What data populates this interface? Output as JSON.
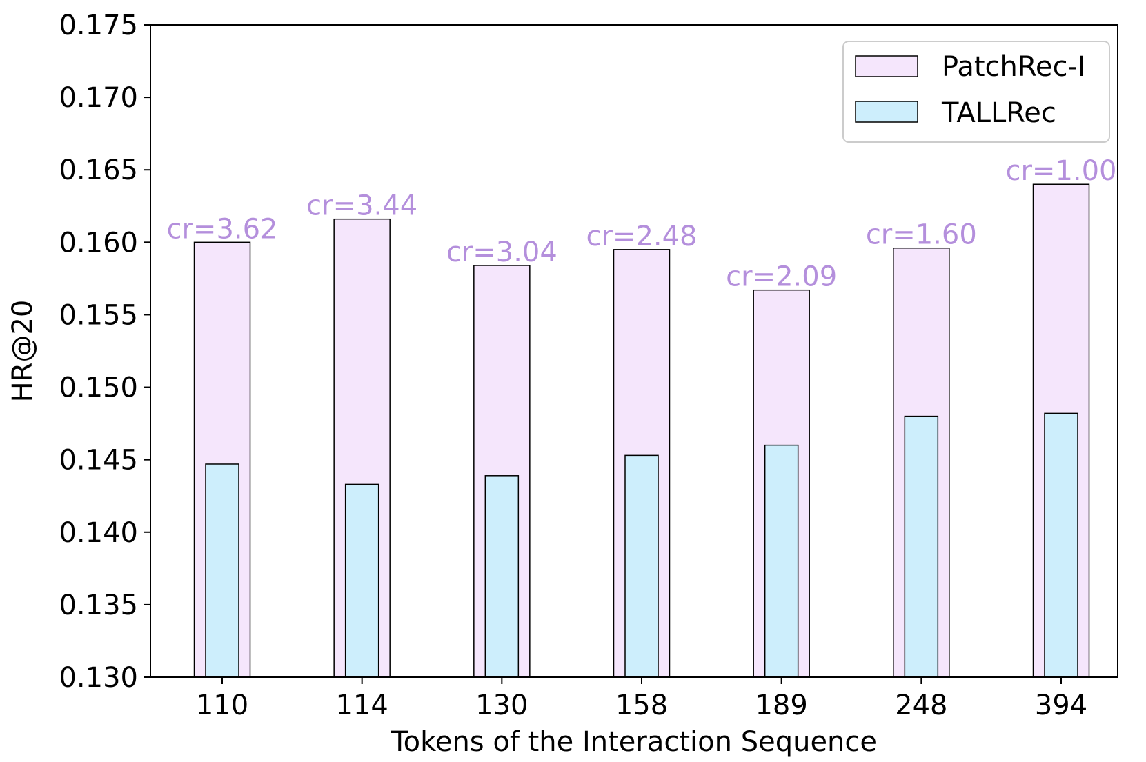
{
  "chart_data": {
    "type": "bar",
    "title": "",
    "xlabel": "Tokens of the Interaction Sequence",
    "ylabel": "HR@20",
    "categories": [
      "110",
      "114",
      "130",
      "158",
      "189",
      "248",
      "394"
    ],
    "series": [
      {
        "name": "PatchRec-I",
        "values": [
          0.16,
          0.1616,
          0.1584,
          0.1595,
          0.1567,
          0.1596,
          0.164
        ],
        "color": "#f5e6fc"
      },
      {
        "name": "TALLRec",
        "values": [
          0.1447,
          0.1433,
          0.1439,
          0.1453,
          0.146,
          0.148,
          0.1482
        ],
        "color": "#cdeefc"
      }
    ],
    "annotations": [
      "cr=3.62",
      "cr=3.44",
      "cr=3.04",
      "cr=2.48",
      "cr=2.09",
      "cr=1.60",
      "cr=1.00"
    ],
    "annotation_color": "#b48fdc",
    "ylim": [
      0.13,
      0.175
    ],
    "yticks": [
      "0.130",
      "0.135",
      "0.140",
      "0.145",
      "0.150",
      "0.155",
      "0.160",
      "0.165",
      "0.170",
      "0.175"
    ],
    "legend_position": "top-right",
    "grid": false
  }
}
